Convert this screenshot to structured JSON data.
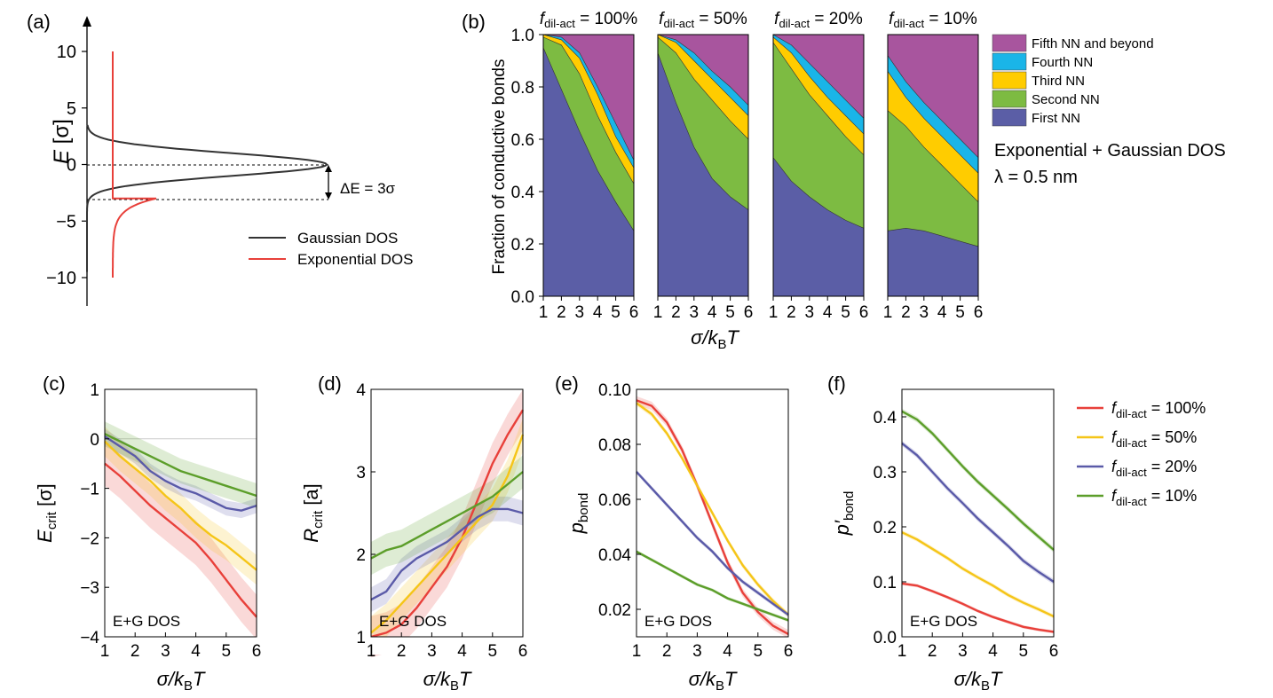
{
  "panel_labels": {
    "a": "(a)",
    "b": "(b)",
    "c": "(c)",
    "d": "(d)",
    "e": "(e)",
    "f": "(f)"
  },
  "colors": {
    "gaussian": "#333333",
    "exponential": "#e8403a",
    "first": "#5b5ea6",
    "second": "#7dbb42",
    "third": "#ffcc00",
    "fourth": "#1ab5e8",
    "fifth": "#a8559e",
    "f100": "#e8403a",
    "f50": "#f5c518",
    "f20": "#5a5aa8",
    "f10": "#5c9e2a"
  },
  "chart_data": [
    {
      "id": "a",
      "type": "line",
      "ylabel_main": "E",
      "ylabel_unit": "[σ]",
      "ylim": [
        -12.5,
        12.5
      ],
      "yticks": [
        "10",
        "5",
        "0",
        "−5",
        "−10"
      ],
      "ytick_values": [
        10,
        5,
        0,
        -5,
        -10
      ],
      "delta_label": "ΔE = 3σ",
      "legend": [
        "Gaussian DOS",
        "Exponential DOS"
      ],
      "series": [
        {
          "name": "Gaussian DOS",
          "description": "Gaussian centred at E=0 with width σ"
        },
        {
          "name": "Exponential DOS",
          "description": "Exponential tail starting at E=-3σ"
        }
      ]
    },
    {
      "id": "b",
      "type": "area",
      "ylabel": "Fraction of conductive bonds",
      "xlabel_main": "σ/k",
      "xlabel_sub": "B",
      "xlabel_end": "T",
      "ylim": [
        0,
        1
      ],
      "xlim": [
        1,
        6
      ],
      "yticks": [
        "0.0",
        "0.2",
        "0.4",
        "0.6",
        "0.8",
        "1.0"
      ],
      "xticks": [
        "1",
        "2",
        "3",
        "4",
        "5",
        "6"
      ],
      "legend": [
        "Fifth NN and beyond",
        "Fourth NN",
        "Third NN",
        "Second NN",
        "First NN"
      ],
      "annotation_1": "Exponential + Gaussian DOS",
      "annotation_2": "λ = 0.5 nm",
      "x": [
        1,
        2,
        3,
        4,
        5,
        6
      ],
      "subplots": [
        {
          "title_pre": "f",
          "title_sub": "dil-act",
          "title_post": " = 100%",
          "first": [
            0.95,
            0.79,
            0.63,
            0.48,
            0.36,
            0.25
          ],
          "second": [
            0.99,
            0.96,
            0.85,
            0.69,
            0.55,
            0.43
          ],
          "third": [
            1.0,
            0.98,
            0.91,
            0.77,
            0.61,
            0.49
          ],
          "fourth": [
            1.0,
            0.99,
            0.93,
            0.8,
            0.66,
            0.52
          ]
        },
        {
          "title_pre": "f",
          "title_sub": "dil-act",
          "title_post": " = 50%",
          "first": [
            0.93,
            0.74,
            0.57,
            0.45,
            0.38,
            0.33
          ],
          "second": [
            0.99,
            0.93,
            0.83,
            0.75,
            0.67,
            0.6
          ],
          "third": [
            1.0,
            0.97,
            0.9,
            0.83,
            0.76,
            0.69
          ],
          "fourth": [
            1.0,
            0.98,
            0.93,
            0.86,
            0.8,
            0.73
          ]
        },
        {
          "title_pre": "f",
          "title_sub": "dil-act",
          "title_post": " = 20%",
          "first": [
            0.53,
            0.44,
            0.38,
            0.33,
            0.29,
            0.26
          ],
          "second": [
            0.97,
            0.87,
            0.77,
            0.69,
            0.61,
            0.54
          ],
          "third": [
            0.99,
            0.93,
            0.84,
            0.76,
            0.69,
            0.62
          ],
          "fourth": [
            1.0,
            0.96,
            0.89,
            0.82,
            0.75,
            0.68
          ]
        },
        {
          "title_pre": "f",
          "title_sub": "dil-act",
          "title_post": " = 10%",
          "first": [
            0.25,
            0.26,
            0.25,
            0.23,
            0.21,
            0.19
          ],
          "second": [
            0.71,
            0.65,
            0.57,
            0.5,
            0.43,
            0.36
          ],
          "third": [
            0.86,
            0.76,
            0.68,
            0.61,
            0.54,
            0.47
          ],
          "fourth": [
            0.92,
            0.82,
            0.74,
            0.67,
            0.6,
            0.53
          ]
        }
      ]
    },
    {
      "id": "c",
      "type": "line",
      "ylabel_main": "E",
      "ylabel_sub": "crit",
      "ylabel_unit": " [σ]",
      "xlabel_main": "σ/k",
      "xlabel_sub": "B",
      "xlabel_end": "T",
      "xlim": [
        1,
        6
      ],
      "ylim": [
        -4,
        1
      ],
      "xticks": [
        "1",
        "2",
        "3",
        "4",
        "5",
        "6"
      ],
      "yticks": [
        "1",
        "0",
        "−1",
        "−2",
        "−3",
        "−4"
      ],
      "ytick_values": [
        1,
        0,
        -1,
        -2,
        -3,
        -4
      ],
      "annotation": "E+G DOS",
      "x": [
        1,
        1.5,
        2,
        2.5,
        3,
        3.5,
        4,
        4.5,
        5,
        5.5,
        6
      ],
      "series": [
        {
          "name": "f100",
          "values": [
            -0.5,
            -0.75,
            -1.05,
            -1.35,
            -1.6,
            -1.85,
            -2.1,
            -2.45,
            -2.85,
            -3.25,
            -3.6
          ],
          "band": 0.45
        },
        {
          "name": "f50",
          "values": [
            -0.05,
            -0.35,
            -0.6,
            -0.85,
            -1.15,
            -1.4,
            -1.7,
            -1.95,
            -2.15,
            -2.4,
            -2.65
          ],
          "band": 0.3
        },
        {
          "name": "f20",
          "values": [
            0.05,
            -0.15,
            -0.35,
            -0.65,
            -0.85,
            -1.0,
            -1.1,
            -1.25,
            -1.4,
            -1.45,
            -1.35
          ],
          "band": 0.15
        },
        {
          "name": "f10",
          "values": [
            0.1,
            -0.05,
            -0.2,
            -0.35,
            -0.5,
            -0.65,
            -0.75,
            -0.85,
            -0.95,
            -1.05,
            -1.15
          ],
          "band": 0.25
        }
      ]
    },
    {
      "id": "d",
      "type": "line",
      "ylabel_main": "R",
      "ylabel_sub": "crit",
      "ylabel_unit": " [a]",
      "xlabel_main": "σ/k",
      "xlabel_sub": "B",
      "xlabel_end": "T",
      "xlim": [
        1,
        6
      ],
      "ylim": [
        1,
        4
      ],
      "xticks": [
        "1",
        "2",
        "3",
        "4",
        "5",
        "6"
      ],
      "yticks": [
        "4",
        "3",
        "2",
        "1"
      ],
      "ytick_values": [
        4,
        3,
        2,
        1
      ],
      "annotation": "E+G DOS",
      "x": [
        1,
        1.5,
        2,
        2.5,
        3,
        3.5,
        4,
        4.5,
        5,
        5.5,
        6
      ],
      "series": [
        {
          "name": "f100",
          "values": [
            1.0,
            1.05,
            1.15,
            1.35,
            1.6,
            1.85,
            2.2,
            2.65,
            3.1,
            3.45,
            3.75
          ],
          "band": 0.25
        },
        {
          "name": "f50",
          "values": [
            1.05,
            1.2,
            1.4,
            1.6,
            1.8,
            2.0,
            2.2,
            2.4,
            2.6,
            2.95,
            3.45
          ],
          "band": 0.2
        },
        {
          "name": "f20",
          "values": [
            1.45,
            1.55,
            1.8,
            1.95,
            2.05,
            2.15,
            2.3,
            2.45,
            2.55,
            2.55,
            2.5
          ],
          "band": 0.15
        },
        {
          "name": "f10",
          "values": [
            1.95,
            2.05,
            2.1,
            2.2,
            2.3,
            2.4,
            2.5,
            2.6,
            2.7,
            2.85,
            3.0
          ],
          "band": 0.2
        }
      ]
    },
    {
      "id": "e",
      "type": "line",
      "ylabel_main": "p",
      "ylabel_sub": "bond",
      "ylabel_unit": "",
      "xlabel_main": "σ/k",
      "xlabel_sub": "B",
      "xlabel_end": "T",
      "xlim": [
        1,
        6
      ],
      "ylim": [
        0.01,
        0.1
      ],
      "xticks": [
        "1",
        "2",
        "3",
        "4",
        "5",
        "6"
      ],
      "yticks": [
        "0.10",
        "0.08",
        "0.06",
        "0.04",
        "0.02"
      ],
      "ytick_values": [
        0.1,
        0.08,
        0.06,
        0.04,
        0.02
      ],
      "annotation": "E+G DOS",
      "x": [
        1,
        1.5,
        2,
        2.5,
        3,
        3.5,
        4,
        4.5,
        5,
        5.5,
        6
      ],
      "series": [
        {
          "name": "f100",
          "values": [
            0.096,
            0.094,
            0.088,
            0.078,
            0.065,
            0.051,
            0.037,
            0.026,
            0.019,
            0.014,
            0.011
          ],
          "band": 0.0015
        },
        {
          "name": "f50",
          "values": [
            0.095,
            0.091,
            0.084,
            0.075,
            0.065,
            0.055,
            0.045,
            0.036,
            0.029,
            0.023,
            0.018
          ],
          "band": 0.001
        },
        {
          "name": "f20",
          "values": [
            0.07,
            0.064,
            0.058,
            0.052,
            0.046,
            0.041,
            0.035,
            0.03,
            0.026,
            0.022,
            0.018
          ],
          "band": 0.0008
        },
        {
          "name": "f10",
          "values": [
            0.041,
            0.038,
            0.035,
            0.032,
            0.029,
            0.027,
            0.024,
            0.022,
            0.02,
            0.018,
            0.016
          ],
          "band": 0.0006
        }
      ]
    },
    {
      "id": "f",
      "type": "line",
      "ylabel_main": "p′",
      "ylabel_sub": "bond",
      "ylabel_unit": "",
      "xlabel_main": "σ/k",
      "xlabel_sub": "B",
      "xlabel_end": "T",
      "xlim": [
        1,
        6
      ],
      "ylim": [
        0,
        0.45
      ],
      "xticks": [
        "1",
        "2",
        "3",
        "4",
        "5",
        "6"
      ],
      "yticks": [
        "0.4",
        "0.3",
        "0.2",
        "0.1",
        "0.0"
      ],
      "ytick_values": [
        0.4,
        0.3,
        0.2,
        0.1,
        0.0
      ],
      "annotation": "E+G DOS",
      "x": [
        1,
        1.5,
        2,
        2.5,
        3,
        3.5,
        4,
        4.5,
        5,
        5.5,
        6
      ],
      "series": [
        {
          "name": "f100",
          "values": [
            0.097,
            0.093,
            0.083,
            0.072,
            0.06,
            0.047,
            0.036,
            0.027,
            0.018,
            0.013,
            0.009
          ],
          "band": 0.003
        },
        {
          "name": "f50",
          "values": [
            0.19,
            0.177,
            0.16,
            0.143,
            0.124,
            0.108,
            0.093,
            0.076,
            0.062,
            0.05,
            0.037
          ],
          "band": 0.004
        },
        {
          "name": "f20",
          "values": [
            0.352,
            0.33,
            0.3,
            0.27,
            0.243,
            0.215,
            0.19,
            0.165,
            0.138,
            0.118,
            0.1
          ],
          "band": 0.005
        },
        {
          "name": "f10",
          "values": [
            0.41,
            0.395,
            0.37,
            0.34,
            0.31,
            0.282,
            0.257,
            0.232,
            0.206,
            0.182,
            0.158
          ],
          "band": 0.005
        }
      ]
    }
  ],
  "line_legend": [
    {
      "key": "f100",
      "pre": "f",
      "sub": "dil-act",
      "post": " = 100%"
    },
    {
      "key": "f50",
      "pre": "f",
      "sub": "dil-act",
      "post": " = 50%"
    },
    {
      "key": "f20",
      "pre": "f",
      "sub": "dil-act",
      "post": " = 20%"
    },
    {
      "key": "f10",
      "pre": "f",
      "sub": "dil-act",
      "post": " = 10%"
    }
  ]
}
